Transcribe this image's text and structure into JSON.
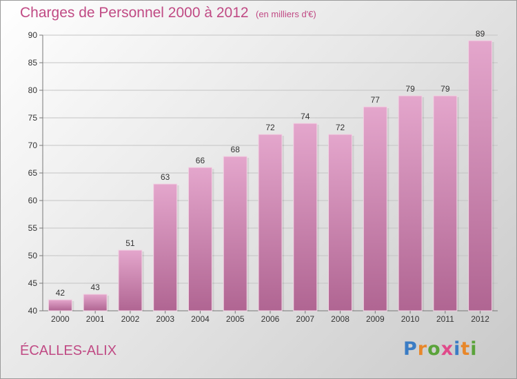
{
  "title": "Charges de Personnel 2000 à 2012",
  "subtitle": "(en milliers d'€)",
  "commune": "ÉCALLES-ALIX",
  "logo": {
    "text": "Proxiti",
    "colors": [
      "#3a7cc4",
      "#e8872a",
      "#5aa33a",
      "#e04a8a",
      "#3a7cc4",
      "#e8872a",
      "#5aa33a"
    ]
  },
  "colors": {
    "accent": "#c04a84",
    "bar_top": "#e4a6cc",
    "bar_bottom": "#b06592"
  },
  "chart_data": {
    "type": "bar",
    "categories": [
      "2000",
      "2001",
      "2002",
      "2003",
      "2004",
      "2005",
      "2006",
      "2007",
      "2008",
      "2009",
      "2010",
      "2011",
      "2012"
    ],
    "values": [
      42,
      43,
      51,
      63,
      66,
      68,
      72,
      74,
      72,
      77,
      79,
      79,
      89
    ],
    "ylim": [
      40,
      90
    ],
    "yticks": [
      40,
      45,
      50,
      55,
      60,
      65,
      70,
      75,
      80,
      85,
      90
    ],
    "grid": true
  }
}
